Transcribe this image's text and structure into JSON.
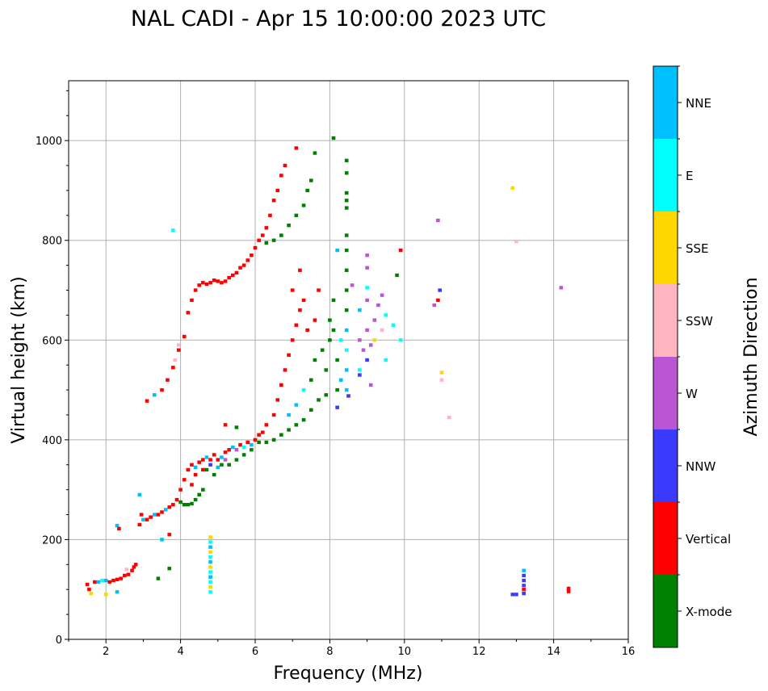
{
  "chart_data": {
    "type": "scatter",
    "title": "NAL CADI - Apr 15 10:00:00 2023 UTC",
    "xlabel": "Frequency (MHz)",
    "ylabel": "Virtual height (km)",
    "xlim": [
      1,
      16
    ],
    "ylim": [
      0,
      1120
    ],
    "xticks": [
      2,
      4,
      6,
      8,
      10,
      12,
      14,
      16
    ],
    "yticks": [
      0,
      200,
      400,
      600,
      800,
      1000
    ],
    "grid": true,
    "colorbar": {
      "label": "Azimuth Direction",
      "categories": [
        "X-mode",
        "Vertical",
        "NNW",
        "W",
        "SSW",
        "SSE",
        "E",
        "NNE"
      ],
      "colors": [
        "#008000",
        "#ff0000",
        "#3a3aff",
        "#ba55d3",
        "#ffb6c1",
        "#ffd700",
        "#00ffff",
        "#00bfff"
      ]
    },
    "points_format": "[frequency_MHz, height_km, category_index]",
    "points": [
      [
        1.5,
        110,
        1
      ],
      [
        1.55,
        100,
        1
      ],
      [
        1.6,
        92,
        5
      ],
      [
        1.7,
        115,
        1
      ],
      [
        1.8,
        115,
        7
      ],
      [
        1.9,
        118,
        6
      ],
      [
        2.0,
        118,
        7
      ],
      [
        2.1,
        115,
        1
      ],
      [
        2.2,
        118,
        1
      ],
      [
        2.3,
        120,
        1
      ],
      [
        2.4,
        122,
        1
      ],
      [
        2.5,
        128,
        1
      ],
      [
        2.55,
        140,
        4
      ],
      [
        2.6,
        130,
        1
      ],
      [
        2.7,
        138,
        1
      ],
      [
        2.75,
        145,
        1
      ],
      [
        2.8,
        150,
        1
      ],
      [
        2.3,
        95,
        7
      ],
      [
        2.0,
        90,
        5
      ],
      [
        2.3,
        228,
        7
      ],
      [
        2.35,
        222,
        1
      ],
      [
        2.9,
        230,
        1
      ],
      [
        2.9,
        290,
        7
      ],
      [
        2.95,
        250,
        1
      ],
      [
        3.0,
        240,
        7
      ],
      [
        3.1,
        240,
        1
      ],
      [
        3.2,
        245,
        1
      ],
      [
        3.3,
        250,
        7
      ],
      [
        3.4,
        250,
        1
      ],
      [
        3.5,
        255,
        1
      ],
      [
        3.6,
        260,
        7
      ],
      [
        3.7,
        265,
        1
      ],
      [
        3.8,
        270,
        1
      ],
      [
        3.9,
        280,
        1
      ],
      [
        4.0,
        300,
        1
      ],
      [
        4.0,
        275,
        0
      ],
      [
        4.1,
        270,
        0
      ],
      [
        4.2,
        270,
        0
      ],
      [
        4.3,
        272,
        0
      ],
      [
        4.4,
        280,
        0
      ],
      [
        4.5,
        290,
        0
      ],
      [
        4.6,
        300,
        0
      ],
      [
        4.1,
        320,
        1
      ],
      [
        4.2,
        340,
        1
      ],
      [
        4.3,
        350,
        1
      ],
      [
        4.4,
        345,
        7
      ],
      [
        4.5,
        355,
        1
      ],
      [
        4.6,
        360,
        1
      ],
      [
        4.7,
        365,
        7
      ],
      [
        4.8,
        360,
        1
      ],
      [
        4.9,
        370,
        1
      ],
      [
        5.0,
        360,
        1
      ],
      [
        5.1,
        365,
        7
      ],
      [
        5.2,
        375,
        1
      ],
      [
        5.3,
        380,
        1
      ],
      [
        5.4,
        385,
        7
      ],
      [
        5.5,
        380,
        3
      ],
      [
        5.6,
        390,
        1
      ],
      [
        5.7,
        385,
        6
      ],
      [
        5.8,
        395,
        1
      ],
      [
        5.9,
        390,
        7
      ],
      [
        6.0,
        400,
        1
      ],
      [
        6.1,
        410,
        1
      ],
      [
        6.2,
        415,
        1
      ],
      [
        4.4,
        330,
        1
      ],
      [
        4.6,
        340,
        1
      ],
      [
        4.8,
        350,
        2
      ],
      [
        5.0,
        345,
        7
      ],
      [
        5.2,
        360,
        3
      ],
      [
        4.3,
        310,
        1
      ],
      [
        4.7,
        340,
        0
      ],
      [
        4.9,
        330,
        0
      ],
      [
        5.1,
        350,
        0
      ],
      [
        5.3,
        350,
        0
      ],
      [
        5.5,
        360,
        0
      ],
      [
        5.7,
        370,
        0
      ],
      [
        5.9,
        380,
        0
      ],
      [
        6.1,
        395,
        0
      ],
      [
        6.3,
        395,
        0
      ],
      [
        6.5,
        400,
        0
      ],
      [
        6.7,
        410,
        0
      ],
      [
        6.9,
        420,
        0
      ],
      [
        7.1,
        430,
        0
      ],
      [
        7.3,
        440,
        0
      ],
      [
        7.5,
        460,
        0
      ],
      [
        7.7,
        480,
        0
      ],
      [
        7.9,
        490,
        0
      ],
      [
        6.3,
        430,
        1
      ],
      [
        6.5,
        450,
        1
      ],
      [
        6.6,
        480,
        1
      ],
      [
        6.7,
        510,
        1
      ],
      [
        6.8,
        540,
        1
      ],
      [
        6.9,
        570,
        1
      ],
      [
        7.0,
        600,
        1
      ],
      [
        7.1,
        630,
        1
      ],
      [
        7.2,
        660,
        1
      ],
      [
        7.3,
        680,
        1
      ],
      [
        7.0,
        700,
        1
      ],
      [
        7.2,
        740,
        1
      ],
      [
        6.9,
        450,
        7
      ],
      [
        7.1,
        470,
        7
      ],
      [
        7.3,
        500,
        6
      ],
      [
        7.5,
        520,
        0
      ],
      [
        7.6,
        560,
        0
      ],
      [
        7.8,
        580,
        0
      ],
      [
        8.0,
        600,
        0
      ],
      [
        8.0,
        640,
        0
      ],
      [
        8.1,
        680,
        0
      ],
      [
        7.9,
        540,
        0
      ],
      [
        7.4,
        620,
        1
      ],
      [
        7.6,
        640,
        1
      ],
      [
        7.7,
        700,
        1
      ],
      [
        3.1,
        478,
        1
      ],
      [
        3.3,
        490,
        7
      ],
      [
        3.5,
        500,
        1
      ],
      [
        3.65,
        520,
        1
      ],
      [
        3.8,
        545,
        1
      ],
      [
        3.85,
        560,
        4
      ],
      [
        3.95,
        580,
        1
      ],
      [
        3.95,
        590,
        4
      ],
      [
        4.1,
        607,
        1
      ],
      [
        4.2,
        655,
        1
      ],
      [
        4.3,
        680,
        1
      ],
      [
        4.4,
        700,
        1
      ],
      [
        4.5,
        710,
        1
      ],
      [
        4.6,
        715,
        1
      ],
      [
        4.7,
        712,
        1
      ],
      [
        4.8,
        715,
        1
      ],
      [
        4.9,
        720,
        1
      ],
      [
        5.0,
        718,
        1
      ],
      [
        5.1,
        715,
        1
      ],
      [
        5.2,
        718,
        1
      ],
      [
        5.3,
        725,
        1
      ],
      [
        5.4,
        730,
        1
      ],
      [
        5.5,
        735,
        1
      ],
      [
        5.6,
        745,
        1
      ],
      [
        5.7,
        750,
        1
      ],
      [
        5.8,
        760,
        1
      ],
      [
        5.9,
        770,
        1
      ],
      [
        6.0,
        785,
        1
      ],
      [
        6.1,
        800,
        1
      ],
      [
        6.2,
        810,
        1
      ],
      [
        6.3,
        825,
        1
      ],
      [
        6.4,
        850,
        1
      ],
      [
        6.5,
        880,
        1
      ],
      [
        6.6,
        900,
        1
      ],
      [
        6.7,
        930,
        1
      ],
      [
        6.8,
        950,
        1
      ],
      [
        7.1,
        985,
        1
      ],
      [
        6.3,
        795,
        0
      ],
      [
        6.5,
        800,
        0
      ],
      [
        6.7,
        810,
        0
      ],
      [
        6.9,
        830,
        0
      ],
      [
        7.1,
        850,
        0
      ],
      [
        7.3,
        870,
        0
      ],
      [
        7.4,
        900,
        0
      ],
      [
        7.5,
        920,
        0
      ],
      [
        7.6,
        975,
        0
      ],
      [
        8.1,
        1005,
        0
      ],
      [
        8.45,
        960,
        0
      ],
      [
        8.45,
        935,
        0
      ],
      [
        8.45,
        895,
        0
      ],
      [
        8.45,
        880,
        0
      ],
      [
        8.45,
        865,
        0
      ],
      [
        8.45,
        810,
        0
      ],
      [
        8.45,
        780,
        0
      ],
      [
        8.45,
        740,
        0
      ],
      [
        8.45,
        700,
        0
      ],
      [
        8.45,
        660,
        0
      ],
      [
        8.45,
        620,
        7
      ],
      [
        8.45,
        580,
        6
      ],
      [
        8.45,
        540,
        7
      ],
      [
        8.45,
        500,
        7
      ],
      [
        8.5,
        488,
        2
      ],
      [
        8.2,
        465,
        2
      ],
      [
        8.2,
        500,
        0
      ],
      [
        8.1,
        620,
        0
      ],
      [
        8.2,
        560,
        0
      ],
      [
        8.3,
        520,
        7
      ],
      [
        8.3,
        600,
        6
      ],
      [
        8.2,
        780,
        7
      ],
      [
        8.8,
        600,
        3
      ],
      [
        9.0,
        620,
        3
      ],
      [
        9.2,
        640,
        3
      ],
      [
        9.0,
        680,
        3
      ],
      [
        9.3,
        670,
        3
      ],
      [
        9.5,
        650,
        6
      ],
      [
        9.7,
        630,
        6
      ],
      [
        9.1,
        590,
        3
      ],
      [
        9.0,
        560,
        2
      ],
      [
        8.8,
        530,
        2
      ],
      [
        9.1,
        510,
        3
      ],
      [
        9.0,
        770,
        3
      ],
      [
        9.0,
        745,
        3
      ],
      [
        9.0,
        705,
        6
      ],
      [
        9.4,
        690,
        3
      ],
      [
        8.6,
        710,
        3
      ],
      [
        8.8,
        660,
        7
      ],
      [
        9.2,
        600,
        5
      ],
      [
        9.5,
        560,
        6
      ],
      [
        9.9,
        600,
        6
      ],
      [
        9.9,
        780,
        1
      ],
      [
        9.8,
        730,
        0
      ],
      [
        8.8,
        540,
        6
      ],
      [
        9.4,
        620,
        4
      ],
      [
        8.9,
        580,
        3
      ],
      [
        10.8,
        670,
        3
      ],
      [
        10.9,
        680,
        1
      ],
      [
        10.95,
        700,
        2
      ],
      [
        10.9,
        840,
        3
      ],
      [
        11.0,
        520,
        4
      ],
      [
        11.0,
        535,
        5
      ],
      [
        11.2,
        445,
        4
      ],
      [
        14.2,
        705,
        3
      ],
      [
        13.0,
        798,
        4
      ],
      [
        12.9,
        905,
        5
      ],
      [
        13.2,
        138,
        7
      ],
      [
        13.2,
        128,
        2
      ],
      [
        13.2,
        118,
        2
      ],
      [
        13.2,
        108,
        2
      ],
      [
        13.2,
        100,
        1
      ],
      [
        13.2,
        92,
        2
      ],
      [
        13.0,
        90,
        2
      ],
      [
        12.9,
        90,
        2
      ],
      [
        14.4,
        102,
        1
      ],
      [
        14.4,
        96,
        1
      ],
      [
        4.8,
        205,
        5
      ],
      [
        4.8,
        195,
        6
      ],
      [
        4.8,
        185,
        7
      ],
      [
        4.8,
        175,
        5
      ],
      [
        4.8,
        165,
        6
      ],
      [
        4.8,
        155,
        7
      ],
      [
        4.8,
        145,
        5
      ],
      [
        4.8,
        135,
        6
      ],
      [
        4.8,
        125,
        7
      ],
      [
        4.8,
        115,
        6
      ],
      [
        4.8,
        105,
        5
      ],
      [
        4.8,
        95,
        6
      ],
      [
        3.5,
        200,
        7
      ],
      [
        3.7,
        210,
        1
      ],
      [
        3.7,
        142,
        0
      ],
      [
        3.4,
        122,
        0
      ],
      [
        3.8,
        820,
        6
      ],
      [
        5.2,
        430,
        1
      ],
      [
        5.5,
        425,
        0
      ]
    ]
  }
}
